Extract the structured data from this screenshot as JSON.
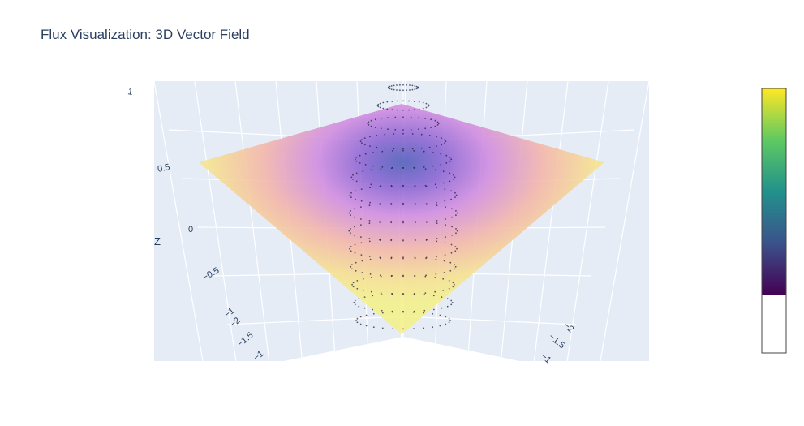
{
  "chart_data": {
    "type": "surface",
    "title": "Flux Visualization: 3D Vector Field",
    "scene": {
      "zaxis": {
        "title": "Z",
        "ticks": [
          "1",
          "0.5",
          "0",
          "−0.5",
          "−1"
        ]
      },
      "xaxis_ticks_left": [
        "−2",
        "−1.5",
        "−1"
      ],
      "yaxis_ticks_right": [
        "−2",
        "−1.5",
        "−1"
      ],
      "background": "#e5ecf6",
      "grid_color": "#ffffff"
    },
    "surface": {
      "colorscale": "Plasma-like (purple center to yellow edges)",
      "center_color": "#5b5fc4",
      "mid_color": "#d08ae0",
      "edge_color": "#f6e888",
      "opacity": 0.75
    },
    "vector_points": {
      "color": "#1a1a3a",
      "shape": "dome of sparse dots"
    },
    "colorbar": {
      "colors": [
        "#440154",
        "#3b528b",
        "#21918c",
        "#5ec962",
        "#fde725"
      ],
      "fill_fraction": 0.78
    }
  }
}
